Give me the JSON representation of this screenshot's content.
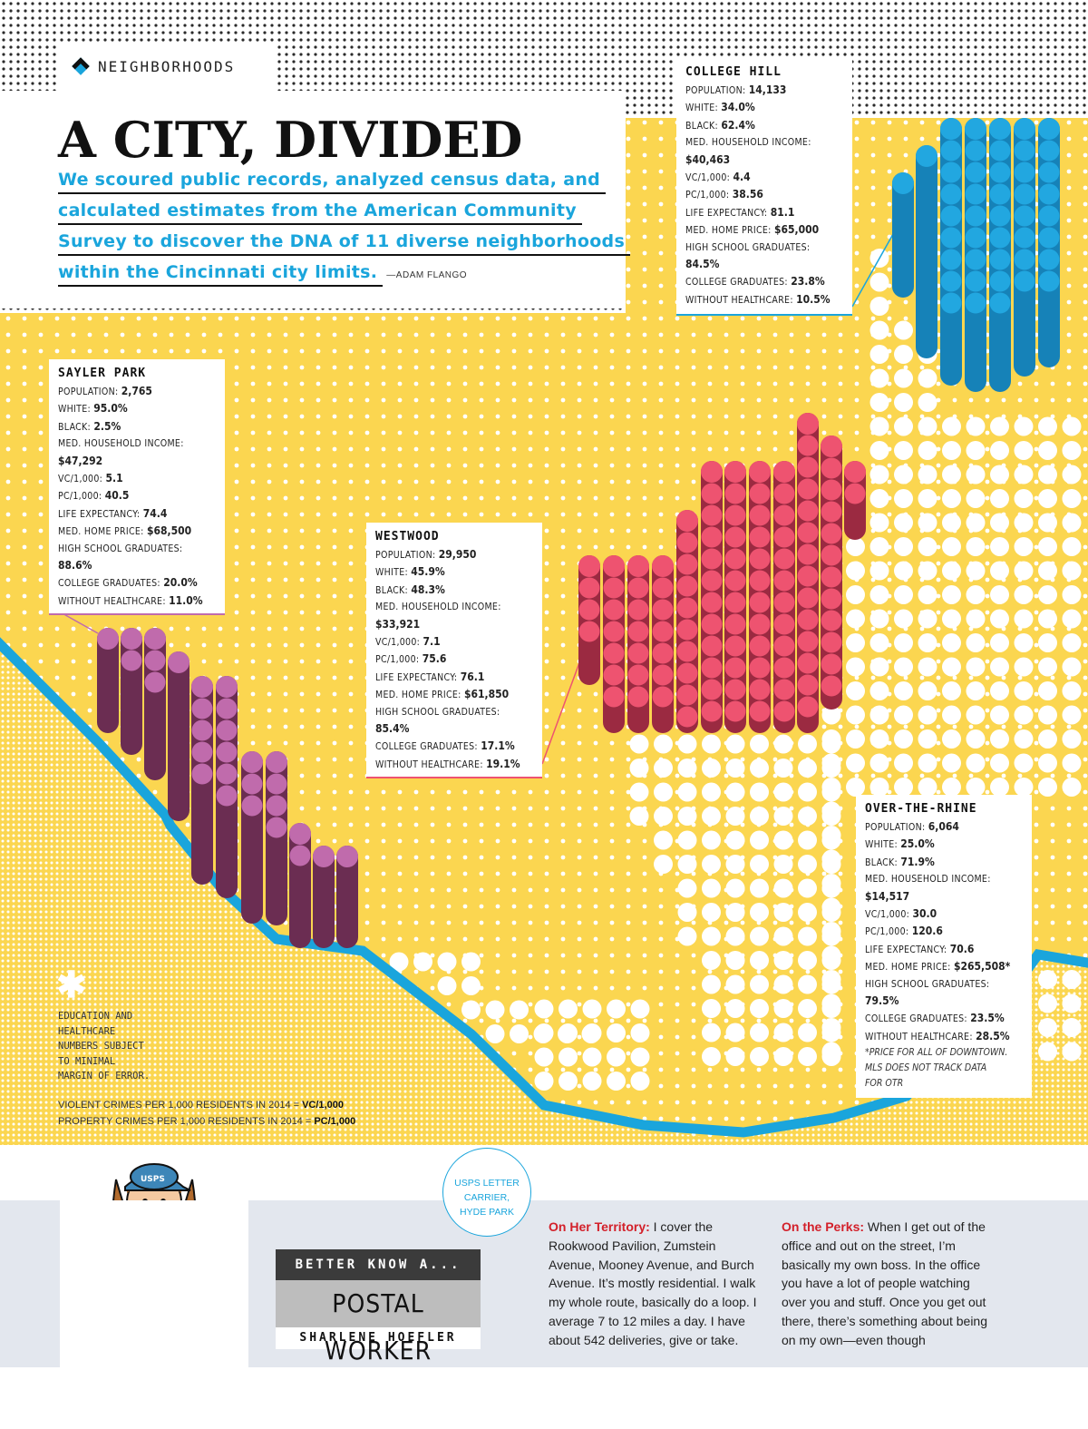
{
  "section_tag": "NEIGHBORHOODS",
  "headline": "A CITY, DIVIDED",
  "dek_lines": [
    "We scoured public records, analyzed census data, and",
    "calculated estimates from the American Community",
    "Survey to discover the DNA of 11 diverse neighborhoods",
    "within the Cincinnati city limits."
  ],
  "byline": "—ADAM FLANGO",
  "colors": {
    "yellow": "#fbd650",
    "river_blue": "#1aa5dc",
    "college_hill": "#1682b8",
    "college_hill_top": "#22a7e0",
    "sayler_park": "#6b2d52",
    "sayler_park_top": "#c06bac",
    "westwood": "#9b2a41",
    "westwood_top": "#ee5370"
  },
  "neighborhoods": {
    "college_hill": {
      "name": "COLLEGE HILL",
      "rows": [
        {
          "label": "POPULATION:",
          "value": "14,133"
        },
        {
          "label": "WHITE:",
          "value": "34.0%"
        },
        {
          "label": "BLACK:",
          "value": "62.4%"
        },
        {
          "label": "MED. HOUSEHOLD INCOME:",
          "value": ""
        },
        {
          "label": "",
          "value": "$40,463"
        },
        {
          "label": "VC/1,000:",
          "value": "4.4"
        },
        {
          "label": "PC/1,000:",
          "value": "38.56"
        },
        {
          "label": "LIFE EXPECTANCY:",
          "value": "81.1"
        },
        {
          "label": "MED. HOME PRICE:",
          "value": "$65,000"
        },
        {
          "label": "HIGH SCHOOL GRADUATES:",
          "value": ""
        },
        {
          "label": "",
          "value": "84.5%"
        },
        {
          "label": "COLLEGE GRADUATES:",
          "value": "23.8%"
        },
        {
          "label": "WITHOUT HEALTHCARE:",
          "value": "10.5%"
        }
      ]
    },
    "sayler_park": {
      "name": "SAYLER PARK",
      "rows": [
        {
          "label": "POPULATION:",
          "value": "2,765"
        },
        {
          "label": "WHITE:",
          "value": "95.0%"
        },
        {
          "label": "BLACK:",
          "value": "2.5%"
        },
        {
          "label": "MED. HOUSEHOLD INCOME:",
          "value": ""
        },
        {
          "label": "",
          "value": "$47,292"
        },
        {
          "label": "VC/1,000:",
          "value": "5.1"
        },
        {
          "label": "PC/1,000:",
          "value": "40.5"
        },
        {
          "label": "LIFE EXPECTANCY:",
          "value": "74.4"
        },
        {
          "label": "MED. HOME PRICE:",
          "value": "$68,500"
        },
        {
          "label": "HIGH SCHOOL GRADUATES:",
          "value": ""
        },
        {
          "label": "",
          "value": "88.6%"
        },
        {
          "label": "COLLEGE GRADUATES:",
          "value": "20.0%"
        },
        {
          "label": "WITHOUT HEALTHCARE:",
          "value": "11.0%"
        }
      ]
    },
    "westwood": {
      "name": "WESTWOOD",
      "rows": [
        {
          "label": "POPULATION:",
          "value": "29,950"
        },
        {
          "label": "WHITE:",
          "value": "45.9%"
        },
        {
          "label": "BLACK:",
          "value": "48.3%"
        },
        {
          "label": "MED. HOUSEHOLD INCOME:",
          "value": ""
        },
        {
          "label": "",
          "value": "$33,921"
        },
        {
          "label": "VC/1,000:",
          "value": "7.1"
        },
        {
          "label": "PC/1,000:",
          "value": "75.6"
        },
        {
          "label": "LIFE EXPECTANCY:",
          "value": "76.1"
        },
        {
          "label": "MED. HOME PRICE:",
          "value": "$61,850"
        },
        {
          "label": "HIGH SCHOOL GRADUATES:",
          "value": ""
        },
        {
          "label": "",
          "value": "85.4%"
        },
        {
          "label": "COLLEGE GRADUATES:",
          "value": "17.1%"
        },
        {
          "label": "WITHOUT HEALTHCARE:",
          "value": "19.1%"
        }
      ]
    },
    "over_the_rhine": {
      "name": "OVER-THE-RHINE",
      "rows": [
        {
          "label": "POPULATION:",
          "value": "6,064"
        },
        {
          "label": "WHITE:",
          "value": "25.0%"
        },
        {
          "label": "BLACK:",
          "value": "71.9%"
        },
        {
          "label": "MED. HOUSEHOLD INCOME:",
          "value": ""
        },
        {
          "label": "",
          "value": "$14,517"
        },
        {
          "label": "VC/1,000:",
          "value": "30.0"
        },
        {
          "label": "PC/1,000:",
          "value": "120.6"
        },
        {
          "label": "LIFE EXPECTANCY:",
          "value": "70.6"
        },
        {
          "label": "MED. HOME PRICE:",
          "value": "$265,508*"
        },
        {
          "label": "HIGH SCHOOL GRADUATES:",
          "value": ""
        },
        {
          "label": "",
          "value": "79.5%"
        },
        {
          "label": "COLLEGE GRADUATES:",
          "value": "23.5%"
        },
        {
          "label": "WITHOUT HEALTHCARE:",
          "value": "28.5%"
        }
      ],
      "note": [
        "*PRICE FOR ALL OF DOWNTOWN.",
        "MLS DOES NOT TRACK DATA",
        "FOR OTR"
      ]
    }
  },
  "footnote_lines": [
    "EDUCATION AND",
    "HEALTHCARE",
    "NUMBERS SUBJECT",
    "TO MINIMAL",
    "MARGIN OF ERROR."
  ],
  "legend": [
    {
      "text": "VIOLENT CRIMES PER 1,000 RESIDENTS IN 2014 = ",
      "abbr": "VC/1,000"
    },
    {
      "text": "PROPERTY CRIMES PER 1,000 RESIDENTS IN 2014 = ",
      "abbr": "PC/1,000"
    }
  ],
  "sidebar": {
    "circle_lines": [
      "USPS LETTER",
      "CARRIER,",
      "HYDE PARK"
    ],
    "series_label": "BETTER KNOW A...",
    "subject": "POSTAL WORKER",
    "person": "SHARLENE HOEFLER",
    "cap_text": "USPS",
    "col1_kicker": "On Her Territory:",
    "col1_text": " I cover the Rookwood Pavilion, Zumstein Avenue, Mooney Avenue, and Burch Avenue. It’s mostly residential. I walk my whole route, basically do a loop. I average 7 to 12 miles a day. I have about 542 deliveries, give or take.",
    "col2_kicker": "On the Perks:",
    "col2_text": " When I get out of the office and out on the street, I’m basically my own boss. In the office you have a lot of people watching over you and stuff. Once you get out there, there’s something about being on my own—even though"
  }
}
